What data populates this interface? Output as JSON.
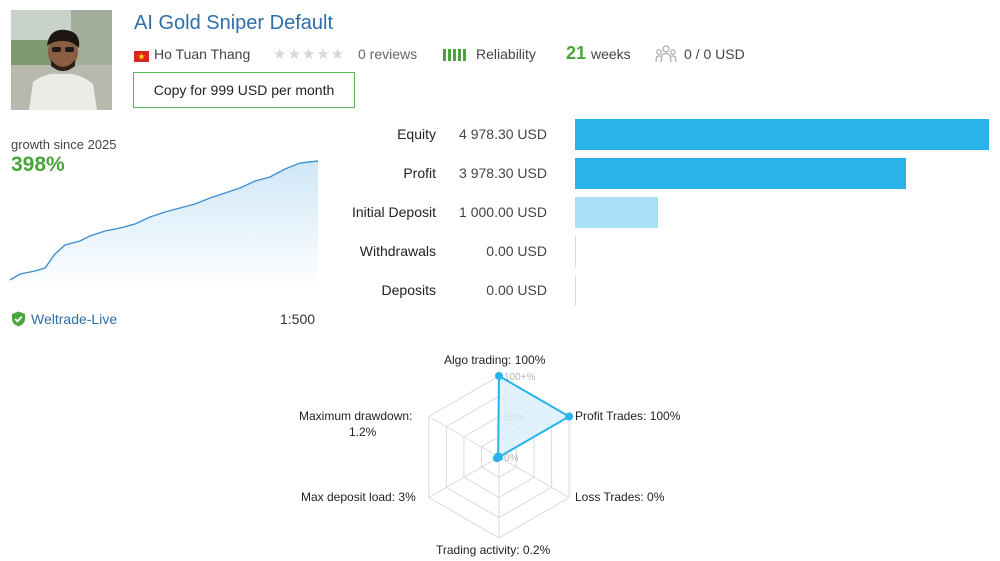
{
  "signal": {
    "title": "AI Gold Sniper Default",
    "author": "Ho Tuan Thang",
    "reviews": "0 reviews",
    "reliability_label": "Reliability",
    "reliability_level": 5,
    "weeks_value": "21",
    "weeks_label": "weeks",
    "subscribers": "0 / 0 USD",
    "copy_button": "Copy for 999 USD per month"
  },
  "growth": {
    "label": "growth since 2025",
    "value": "398%",
    "broker": "Weltrade-Live",
    "leverage": "1:500"
  },
  "stats": [
    {
      "label": "Equity",
      "value": "4 978.30 USD",
      "amount": 4978.3,
      "color": "#29b3e8"
    },
    {
      "label": "Profit",
      "value": "3 978.30 USD",
      "amount": 3978.3,
      "color": "#29b3e8"
    },
    {
      "label": "Initial Deposit",
      "value": "1 000.00 USD",
      "amount": 1000.0,
      "color": "#a9e0f6"
    },
    {
      "label": "Withdrawals",
      "value": "0.00 USD",
      "amount": 0,
      "color": "#a9e0f6"
    },
    {
      "label": "Deposits",
      "value": "0.00 USD",
      "amount": 0,
      "color": "#a9e0f6"
    }
  ],
  "radar": {
    "scale_labels": [
      "100+%",
      "50%",
      "0%"
    ],
    "axes": [
      {
        "label": "Algo trading: 100%",
        "value": 100
      },
      {
        "label": "Profit Trades: 100%",
        "value": 100
      },
      {
        "label": "Loss Trades: 0%",
        "value": 0
      },
      {
        "label": "Trading activity: 0.2%",
        "value": 0.2
      },
      {
        "label": "Max deposit load: 3%",
        "value": 3
      },
      {
        "label": "Maximum drawdown:",
        "label2": "1.2%",
        "value": 1.2
      }
    ],
    "stroke_color": "#29b3e8",
    "fill_color": "#d5eef9"
  },
  "colors": {
    "title": "#2f6ea8",
    "green": "#49a53a",
    "bar_strong": "#29b3e8",
    "bar_light": "#a9e0f6"
  }
}
